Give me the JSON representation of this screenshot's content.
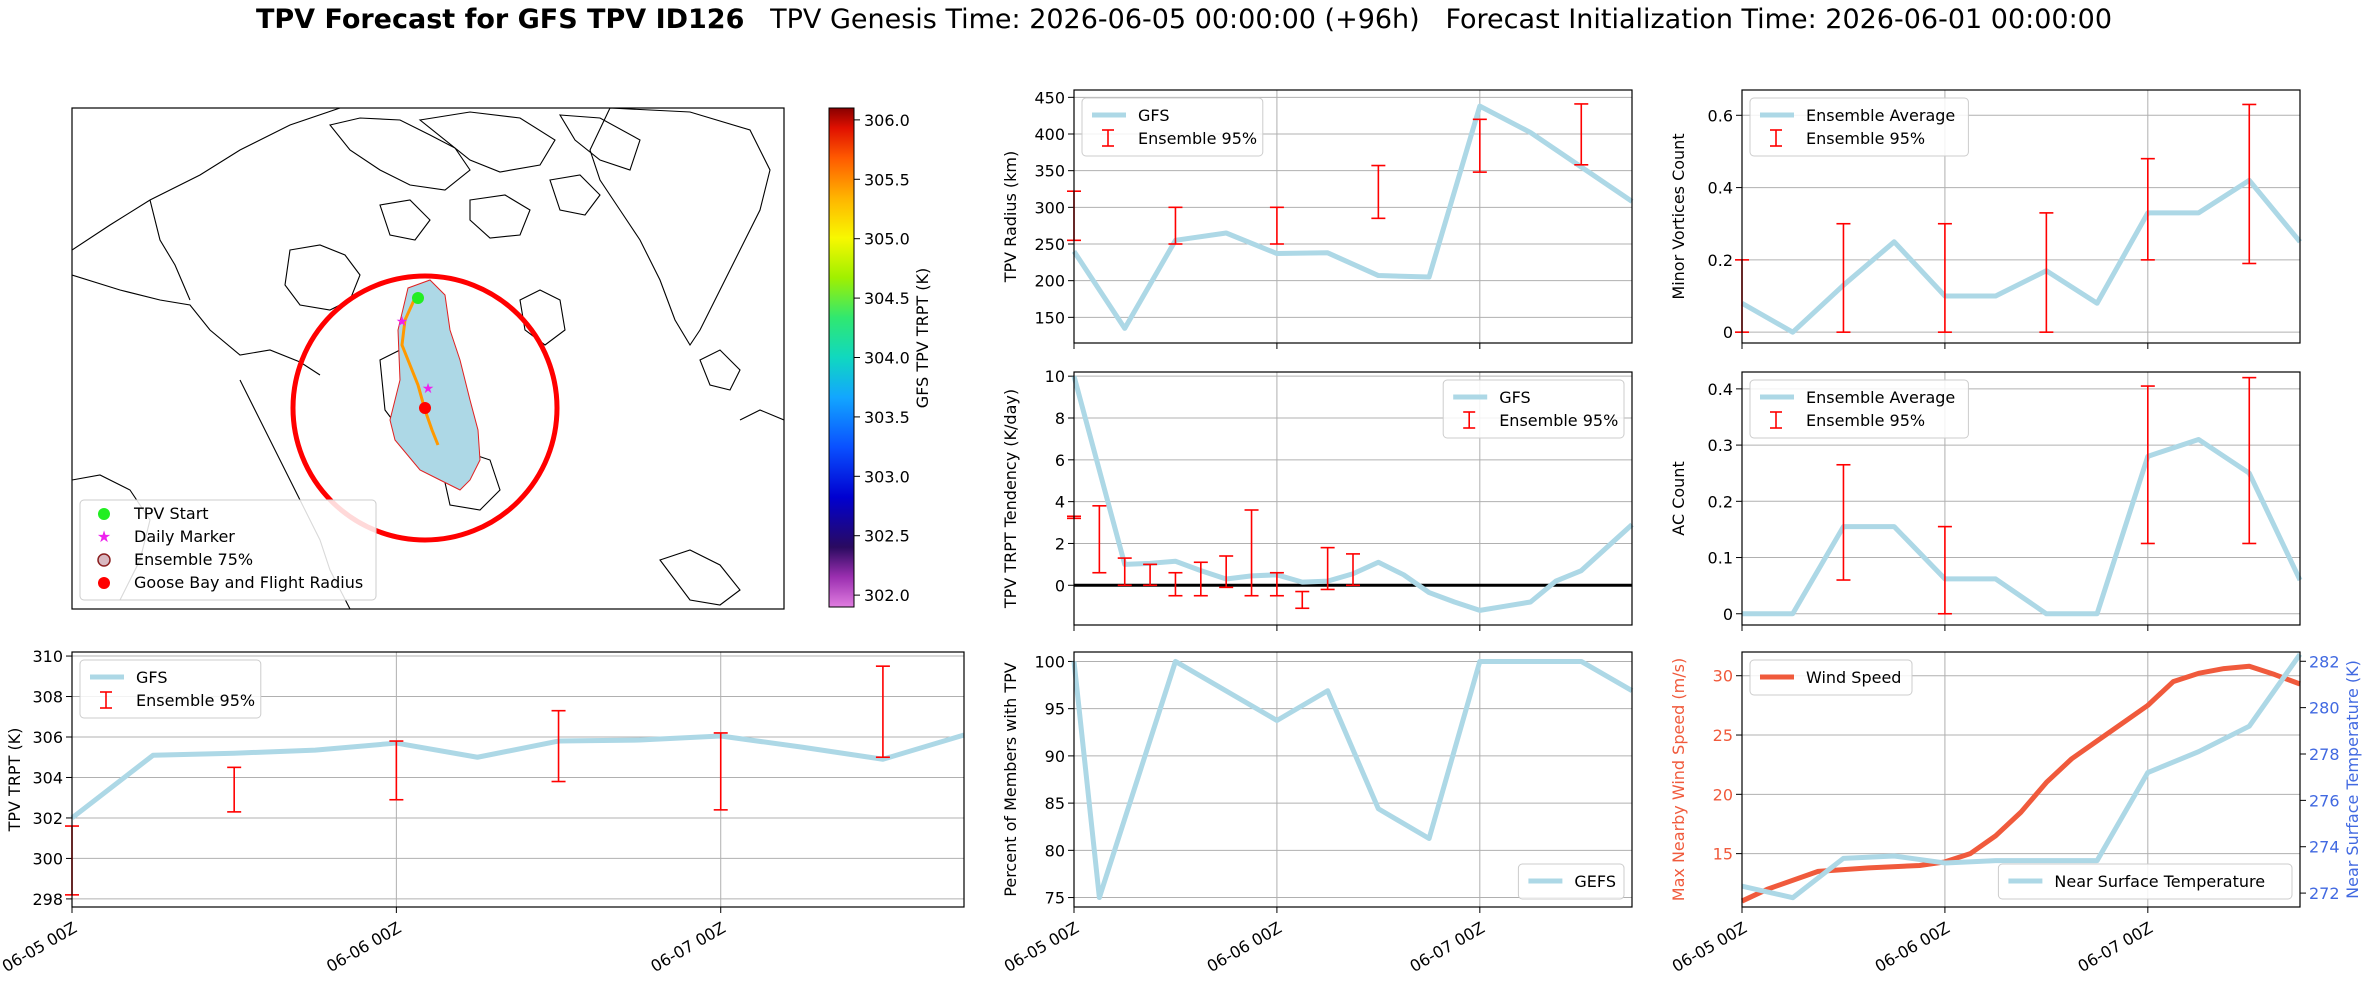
{
  "title": {
    "bold": "TPV Forecast for GFS TPV ID126",
    "genesis": "TPV Genesis Time: 2026-06-05 00:00:00 (+96h)",
    "init": "Forecast Initialization Time: 2026-06-01 00:00:00"
  },
  "colors": {
    "series": "#add8e6",
    "errorbar": "#ff0000",
    "wind": "#f05a3c",
    "temp_axis": "#4169e1",
    "circle": "#ff0000",
    "start": "#22ee22",
    "marker": "#ee22ee",
    "goose": "#ff0000"
  },
  "map": {
    "legend": [
      "TPV Start",
      "Daily Marker",
      "Ensemble 75%",
      "Goose Bay and Flight Radius"
    ],
    "colorbar": {
      "label": "GFS TPV TRPT (K)",
      "ticks": [
        302.0,
        302.5,
        303.0,
        303.5,
        304.0,
        304.5,
        305.0,
        305.5,
        306.0
      ],
      "min": 301.9,
      "max": 306.1
    }
  },
  "chart_data": [
    {
      "id": "radius",
      "type": "line",
      "ylabel": "TPV Radius (km)",
      "ylim": [
        115,
        460
      ],
      "yticks": [
        150,
        200,
        250,
        300,
        350,
        400,
        450
      ],
      "legend": [
        "GFS",
        "Ensemble 95%"
      ],
      "legend_pos": "upper-left",
      "series": [
        {
          "name": "GFS",
          "x": [
            0,
            6,
            12,
            18,
            24,
            30,
            36,
            42,
            48,
            54,
            60,
            66
          ],
          "values": [
            240,
            135,
            255,
            265,
            237,
            238,
            207,
            205,
            438,
            402,
            355,
            308
          ]
        }
      ],
      "errorbars": [
        {
          "x": 0,
          "low": 255,
          "high": 322
        },
        {
          "x": 12,
          "low": 250,
          "high": 300
        },
        {
          "x": 24,
          "low": 250,
          "high": 300
        },
        {
          "x": 36,
          "low": 285,
          "high": 357
        },
        {
          "x": 48,
          "low": 348,
          "high": 420
        },
        {
          "x": 60,
          "low": 358,
          "high": 441
        }
      ]
    },
    {
      "id": "minor",
      "type": "line",
      "ylabel": "Minor Vortices Count",
      "ylim": [
        -0.03,
        0.67
      ],
      "yticks": [
        0.0,
        0.2,
        0.4,
        0.6
      ],
      "legend": [
        "Ensemble Average",
        "Ensemble 95%"
      ],
      "legend_pos": "upper-left",
      "series": [
        {
          "name": "Ensemble Average",
          "x": [
            0,
            6,
            12,
            18,
            24,
            30,
            36,
            42,
            48,
            54,
            60,
            66
          ],
          "values": [
            0.08,
            0.0,
            0.13,
            0.25,
            0.1,
            0.1,
            0.17,
            0.08,
            0.33,
            0.33,
            0.42,
            0.25
          ]
        }
      ],
      "errorbars": [
        {
          "x": 0,
          "low": 0.0,
          "high": 0.2
        },
        {
          "x": 12,
          "low": 0.0,
          "high": 0.3
        },
        {
          "x": 24,
          "low": 0.0,
          "high": 0.3
        },
        {
          "x": 36,
          "low": 0.0,
          "high": 0.33
        },
        {
          "x": 48,
          "low": 0.2,
          "high": 0.48
        },
        {
          "x": 60,
          "low": 0.19,
          "high": 0.63
        }
      ]
    },
    {
      "id": "tendency",
      "type": "line",
      "ylabel": "TPV TRPT Tendency (K/day)",
      "ylim": [
        -1.9,
        10.2
      ],
      "yticks": [
        0,
        2,
        4,
        6,
        8,
        10
      ],
      "zero_line": true,
      "legend": [
        "GFS",
        "Ensemble 95%"
      ],
      "legend_pos": "upper-right",
      "series": [
        {
          "name": "GFS",
          "x": [
            0,
            3,
            6,
            9,
            12,
            15,
            18,
            21,
            24,
            27,
            30,
            33,
            36,
            39,
            42,
            45,
            48,
            51,
            54,
            57,
            60,
            63,
            66
          ],
          "values": [
            10.0,
            5.5,
            1.0,
            1.05,
            1.15,
            0.7,
            0.3,
            0.45,
            0.5,
            0.15,
            0.2,
            0.55,
            1.1,
            0.5,
            -0.35,
            -0.8,
            -1.2,
            -1.0,
            -0.8,
            0.2,
            0.7,
            1.8,
            2.9
          ]
        }
      ],
      "errorbars": [
        {
          "x": 0,
          "low": 3.2,
          "high": 3.3
        },
        {
          "x": 3,
          "low": 0.6,
          "high": 3.8
        },
        {
          "x": 6,
          "low": 0.0,
          "high": 1.3
        },
        {
          "x": 9,
          "low": 0.0,
          "high": 1.0
        },
        {
          "x": 12,
          "low": -0.5,
          "high": 0.6
        },
        {
          "x": 15,
          "low": -0.5,
          "high": 1.1
        },
        {
          "x": 18,
          "low": -0.1,
          "high": 1.4
        },
        {
          "x": 21,
          "low": -0.5,
          "high": 3.6
        },
        {
          "x": 24,
          "low": -0.5,
          "high": 0.6
        },
        {
          "x": 27,
          "low": -1.1,
          "high": -0.3
        },
        {
          "x": 30,
          "low": -0.2,
          "high": 1.8
        },
        {
          "x": 33,
          "low": 0.0,
          "high": 1.5
        }
      ]
    },
    {
      "id": "ac",
      "type": "line",
      "ylabel": "AC Count",
      "ylim": [
        -0.02,
        0.43
      ],
      "yticks": [
        0.0,
        0.1,
        0.2,
        0.3,
        0.4
      ],
      "legend": [
        "Ensemble Average",
        "Ensemble 95%"
      ],
      "legend_pos": "upper-left",
      "series": [
        {
          "name": "Ensemble Average",
          "x": [
            0,
            6,
            12,
            18,
            24,
            30,
            36,
            42,
            48,
            54,
            60,
            66
          ],
          "values": [
            0.0,
            0.0,
            0.155,
            0.155,
            0.062,
            0.062,
            0.0,
            0.0,
            0.28,
            0.31,
            0.25,
            0.06
          ]
        }
      ],
      "errorbars": [
        {
          "x": 12,
          "low": 0.06,
          "high": 0.265
        },
        {
          "x": 24,
          "low": 0.0,
          "high": 0.155
        },
        {
          "x": 48,
          "low": 0.125,
          "high": 0.405
        },
        {
          "x": 60,
          "low": 0.125,
          "high": 0.42
        }
      ]
    },
    {
      "id": "trpt",
      "type": "line",
      "ylabel": "TPV TRPT (K)",
      "ylim": [
        297.6,
        310.2
      ],
      "yticks": [
        298,
        300,
        302,
        304,
        306,
        308,
        310
      ],
      "xticks": [
        0,
        24,
        48
      ],
      "xticklabels": [
        "06-05 00Z",
        "06-06 00Z",
        "06-07 00Z"
      ],
      "legend": [
        "GFS",
        "Ensemble 95%"
      ],
      "legend_pos": "upper-left",
      "series": [
        {
          "name": "GFS",
          "x": [
            0,
            6,
            12,
            18,
            24,
            30,
            36,
            42,
            48,
            54,
            60,
            66
          ],
          "values": [
            302.0,
            305.1,
            305.2,
            305.35,
            305.7,
            305.0,
            305.8,
            305.85,
            306.05,
            305.5,
            304.9,
            306.1
          ]
        }
      ],
      "errorbars": [
        {
          "x": 0,
          "low": 298.2,
          "high": 301.6
        },
        {
          "x": 12,
          "low": 302.3,
          "high": 304.5
        },
        {
          "x": 24,
          "low": 302.9,
          "high": 305.8
        },
        {
          "x": 36,
          "low": 303.8,
          "high": 307.3
        },
        {
          "x": 48,
          "low": 302.4,
          "high": 306.2
        },
        {
          "x": 60,
          "low": 305.0,
          "high": 309.5
        }
      ]
    },
    {
      "id": "members",
      "type": "line",
      "ylabel": "Percent of Members with TPV",
      "ylim": [
        74,
        101
      ],
      "yticks": [
        75,
        80,
        85,
        90,
        95,
        100
      ],
      "xticks": [
        0,
        24,
        48
      ],
      "xticklabels": [
        "06-05 00Z",
        "06-06 00Z",
        "06-07 00Z"
      ],
      "legend": [
        "GEFS"
      ],
      "legend_pos": "lower-right",
      "series": [
        {
          "name": "GEFS",
          "x": [
            0,
            3,
            12,
            24,
            30,
            36,
            42,
            48,
            54,
            60,
            66
          ],
          "values": [
            100,
            75,
            100,
            93.75,
            96.9,
            84.4,
            81.25,
            100,
            100,
            100,
            96.9
          ]
        }
      ]
    },
    {
      "id": "wind",
      "type": "line",
      "ylabel": "Max Nearby Wind Speed (m/s)",
      "ylabel2": "Near Surface Temperature (K)",
      "ylim": [
        10.5,
        32
      ],
      "yticks": [
        15,
        20,
        25,
        30
      ],
      "ylim2": [
        271.4,
        282.4
      ],
      "yticks2": [
        272,
        274,
        276,
        278,
        280,
        282
      ],
      "xticks": [
        0,
        24,
        48
      ],
      "xticklabels": [
        "06-05 00Z",
        "06-06 00Z",
        "06-07 00Z"
      ],
      "legend": [
        "Wind Speed"
      ],
      "legend2": [
        "Near Surface Temperature"
      ],
      "series": [
        {
          "name": "Wind Speed",
          "x": [
            0,
            3,
            9,
            15,
            21,
            24,
            27,
            30,
            33,
            36,
            39,
            42,
            45,
            48,
            51,
            54,
            57,
            60,
            63,
            66
          ],
          "values": [
            11.0,
            12.0,
            13.5,
            13.8,
            14.0,
            14.3,
            15.0,
            16.5,
            18.5,
            21.0,
            23.0,
            24.5,
            26.0,
            27.5,
            29.5,
            30.2,
            30.6,
            30.8,
            30.1,
            29.3
          ]
        },
        {
          "name": "Near Surface Temperature",
          "axis": 2,
          "x": [
            0,
            6,
            12,
            18,
            24,
            30,
            36,
            42,
            48,
            54,
            60,
            66
          ],
          "values": [
            272.3,
            271.8,
            273.5,
            273.6,
            273.3,
            273.4,
            273.4,
            273.4,
            277.2,
            278.1,
            279.2,
            282.3
          ]
        }
      ]
    }
  ]
}
